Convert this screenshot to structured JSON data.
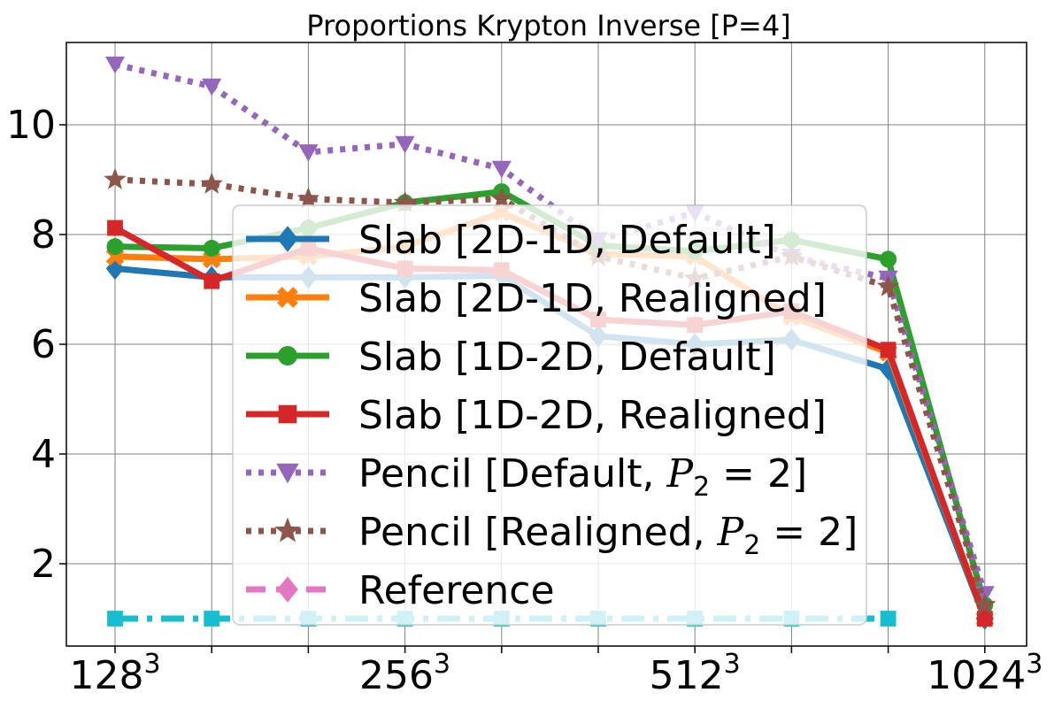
{
  "chart_data": {
    "type": "line",
    "title": "Proportions Krypton Inverse [P=4]",
    "xlabel": "",
    "ylabel": "",
    "x_tick_labels": [
      {
        "base": "128",
        "exp": "3"
      },
      {
        "base": "256",
        "exp": "3"
      },
      {
        "base": "512",
        "exp": "3"
      },
      {
        "base": "1024",
        "exp": "3"
      }
    ],
    "y_ticks": [
      2,
      4,
      6,
      8,
      10
    ],
    "ylim": [
      0.5,
      11.5
    ],
    "grid": true,
    "legend_placement": "center",
    "series": [
      {
        "name": "Slab [2D-1D, Default]",
        "color": "#1f77b4",
        "marker": "diamond",
        "line": "solid",
        "values": [
          7.38,
          7.22,
          7.22,
          7.22,
          7.25,
          6.15,
          6.0,
          6.08,
          5.55,
          1.0
        ]
      },
      {
        "name": "Slab [2D-1D, Realigned]",
        "color": "#ff7f0e",
        "marker": "x",
        "line": "solid",
        "values": [
          7.6,
          7.55,
          7.6,
          7.78,
          8.4,
          7.65,
          7.6,
          6.5,
          5.85,
          1.0
        ]
      },
      {
        "name": "Slab [1D-2D, Default]",
        "color": "#2ca02c",
        "marker": "circle",
        "line": "solid",
        "values": [
          7.78,
          7.75,
          8.12,
          8.58,
          8.78,
          7.8,
          7.7,
          7.9,
          7.55,
          1.25
        ]
      },
      {
        "name": "Slab [1D-2D, Realigned]",
        "color": "#d62728",
        "marker": "square",
        "line": "solid",
        "values": [
          8.12,
          7.15,
          7.75,
          7.38,
          7.35,
          6.45,
          6.35,
          6.6,
          5.9,
          1.0
        ]
      },
      {
        "name": "Pencil [Default, P_2 = 2]",
        "color": "#9467bd",
        "marker": "triangle-down",
        "line": "dotted",
        "values": [
          11.1,
          10.7,
          9.5,
          9.65,
          9.2,
          7.9,
          8.4,
          7.6,
          7.2,
          1.45
        ]
      },
      {
        "name": "Pencil [Realigned, P_2 = 2]",
        "color": "#8c564b",
        "marker": "star",
        "line": "dotted",
        "values": [
          9.0,
          8.92,
          8.65,
          8.58,
          8.65,
          7.6,
          7.2,
          7.6,
          7.05,
          1.25
        ]
      },
      {
        "name": "Reference",
        "color": "#e377c2",
        "marker": "diamond",
        "line": "dashed",
        "values": []
      },
      {
        "name": "",
        "color": "#17becf",
        "marker": "square",
        "line": "dashdot",
        "values": [
          1.0,
          1.0,
          1.0,
          1.0,
          1.0,
          1.0,
          1.0,
          1.0,
          1.0,
          null
        ]
      }
    ],
    "legend_entries": [
      {
        "prefix": "Slab [2D-1D, Default]",
        "math": "",
        "suffix": ""
      },
      {
        "prefix": "Slab [2D-1D, Realigned]",
        "math": "",
        "suffix": ""
      },
      {
        "prefix": "Slab [1D-2D, Default]",
        "math": "",
        "suffix": ""
      },
      {
        "prefix": "Slab [1D-2D, Realigned]",
        "math": "",
        "suffix": ""
      },
      {
        "prefix": "Pencil [Default, ",
        "math": "P",
        "sub": "2",
        "eq": " = 2",
        "suffix": "]"
      },
      {
        "prefix": "Pencil [Realigned, ",
        "math": "P",
        "sub": "2",
        "eq": " = 2",
        "suffix": "]"
      },
      {
        "prefix": "Reference",
        "math": "",
        "suffix": ""
      }
    ]
  }
}
